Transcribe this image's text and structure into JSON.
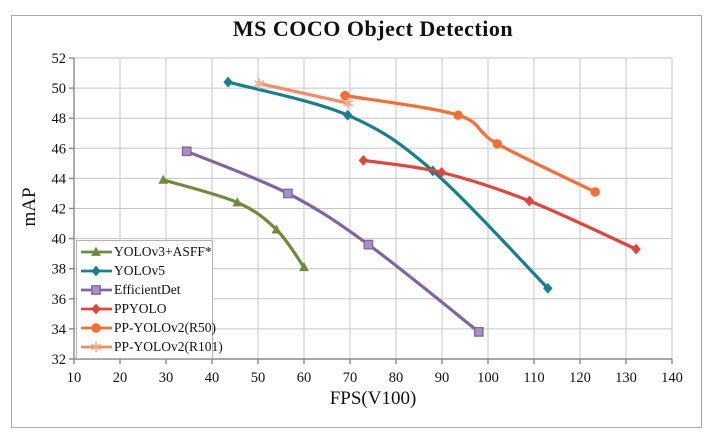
{
  "chart_data": {
    "type": "line",
    "title": "MS COCO Object Detection",
    "xlabel": "FPS(V100)",
    "ylabel": "mAP",
    "xlim": [
      10,
      140
    ],
    "ylim": [
      32,
      52
    ],
    "x_ticks": [
      10,
      20,
      30,
      40,
      50,
      60,
      70,
      80,
      90,
      100,
      110,
      120,
      130,
      140
    ],
    "y_ticks": [
      32,
      34,
      36,
      38,
      40,
      42,
      44,
      46,
      48,
      50,
      52
    ],
    "grid": true,
    "legend_position": "lower-left",
    "colors": {
      "grid": "#c6c6c6",
      "axis": "#8a8a8a",
      "text": "#111111"
    },
    "series": [
      {
        "name": "YOLOv3+ASFF*",
        "color": "#6e8b3c",
        "marker": "triangle",
        "points": [
          [
            29.4,
            43.9
          ],
          [
            45.5,
            42.4
          ],
          [
            54.0,
            40.6
          ],
          [
            60.0,
            38.1
          ]
        ]
      },
      {
        "name": "YOLOv5",
        "color": "#15808e",
        "marker": "diamond",
        "points": [
          [
            43.5,
            50.4
          ],
          [
            69.5,
            48.2
          ],
          [
            88.0,
            44.5
          ],
          [
            113.0,
            36.7
          ]
        ]
      },
      {
        "name": "EfficientDet",
        "color": "#8064a2",
        "marker": "square",
        "marker_fill": "#a591c5",
        "points": [
          [
            34.5,
            45.8
          ],
          [
            56.5,
            43.0
          ],
          [
            74.0,
            39.6
          ],
          [
            98.0,
            33.8
          ]
        ]
      },
      {
        "name": "PPYOLO",
        "color": "#e2433a",
        "marker": "diamond",
        "points": [
          [
            72.9,
            45.2
          ],
          [
            89.9,
            44.4
          ],
          [
            109.0,
            42.5
          ],
          [
            132.2,
            39.3
          ]
        ]
      },
      {
        "name": "PP-YOLOv2(R50)",
        "color": "#f86d31",
        "marker": "circle",
        "points": [
          [
            68.9,
            49.5
          ],
          [
            93.5,
            48.2
          ],
          [
            102.0,
            46.3
          ],
          [
            123.3,
            43.1
          ]
        ]
      },
      {
        "name": "PP-YOLOv2(R101)",
        "color": "#fa8a63",
        "marker": "star",
        "marker_fill": "#fcab8c",
        "points": [
          [
            50.3,
            50.3
          ],
          [
            69.6,
            49.0
          ]
        ]
      }
    ]
  }
}
